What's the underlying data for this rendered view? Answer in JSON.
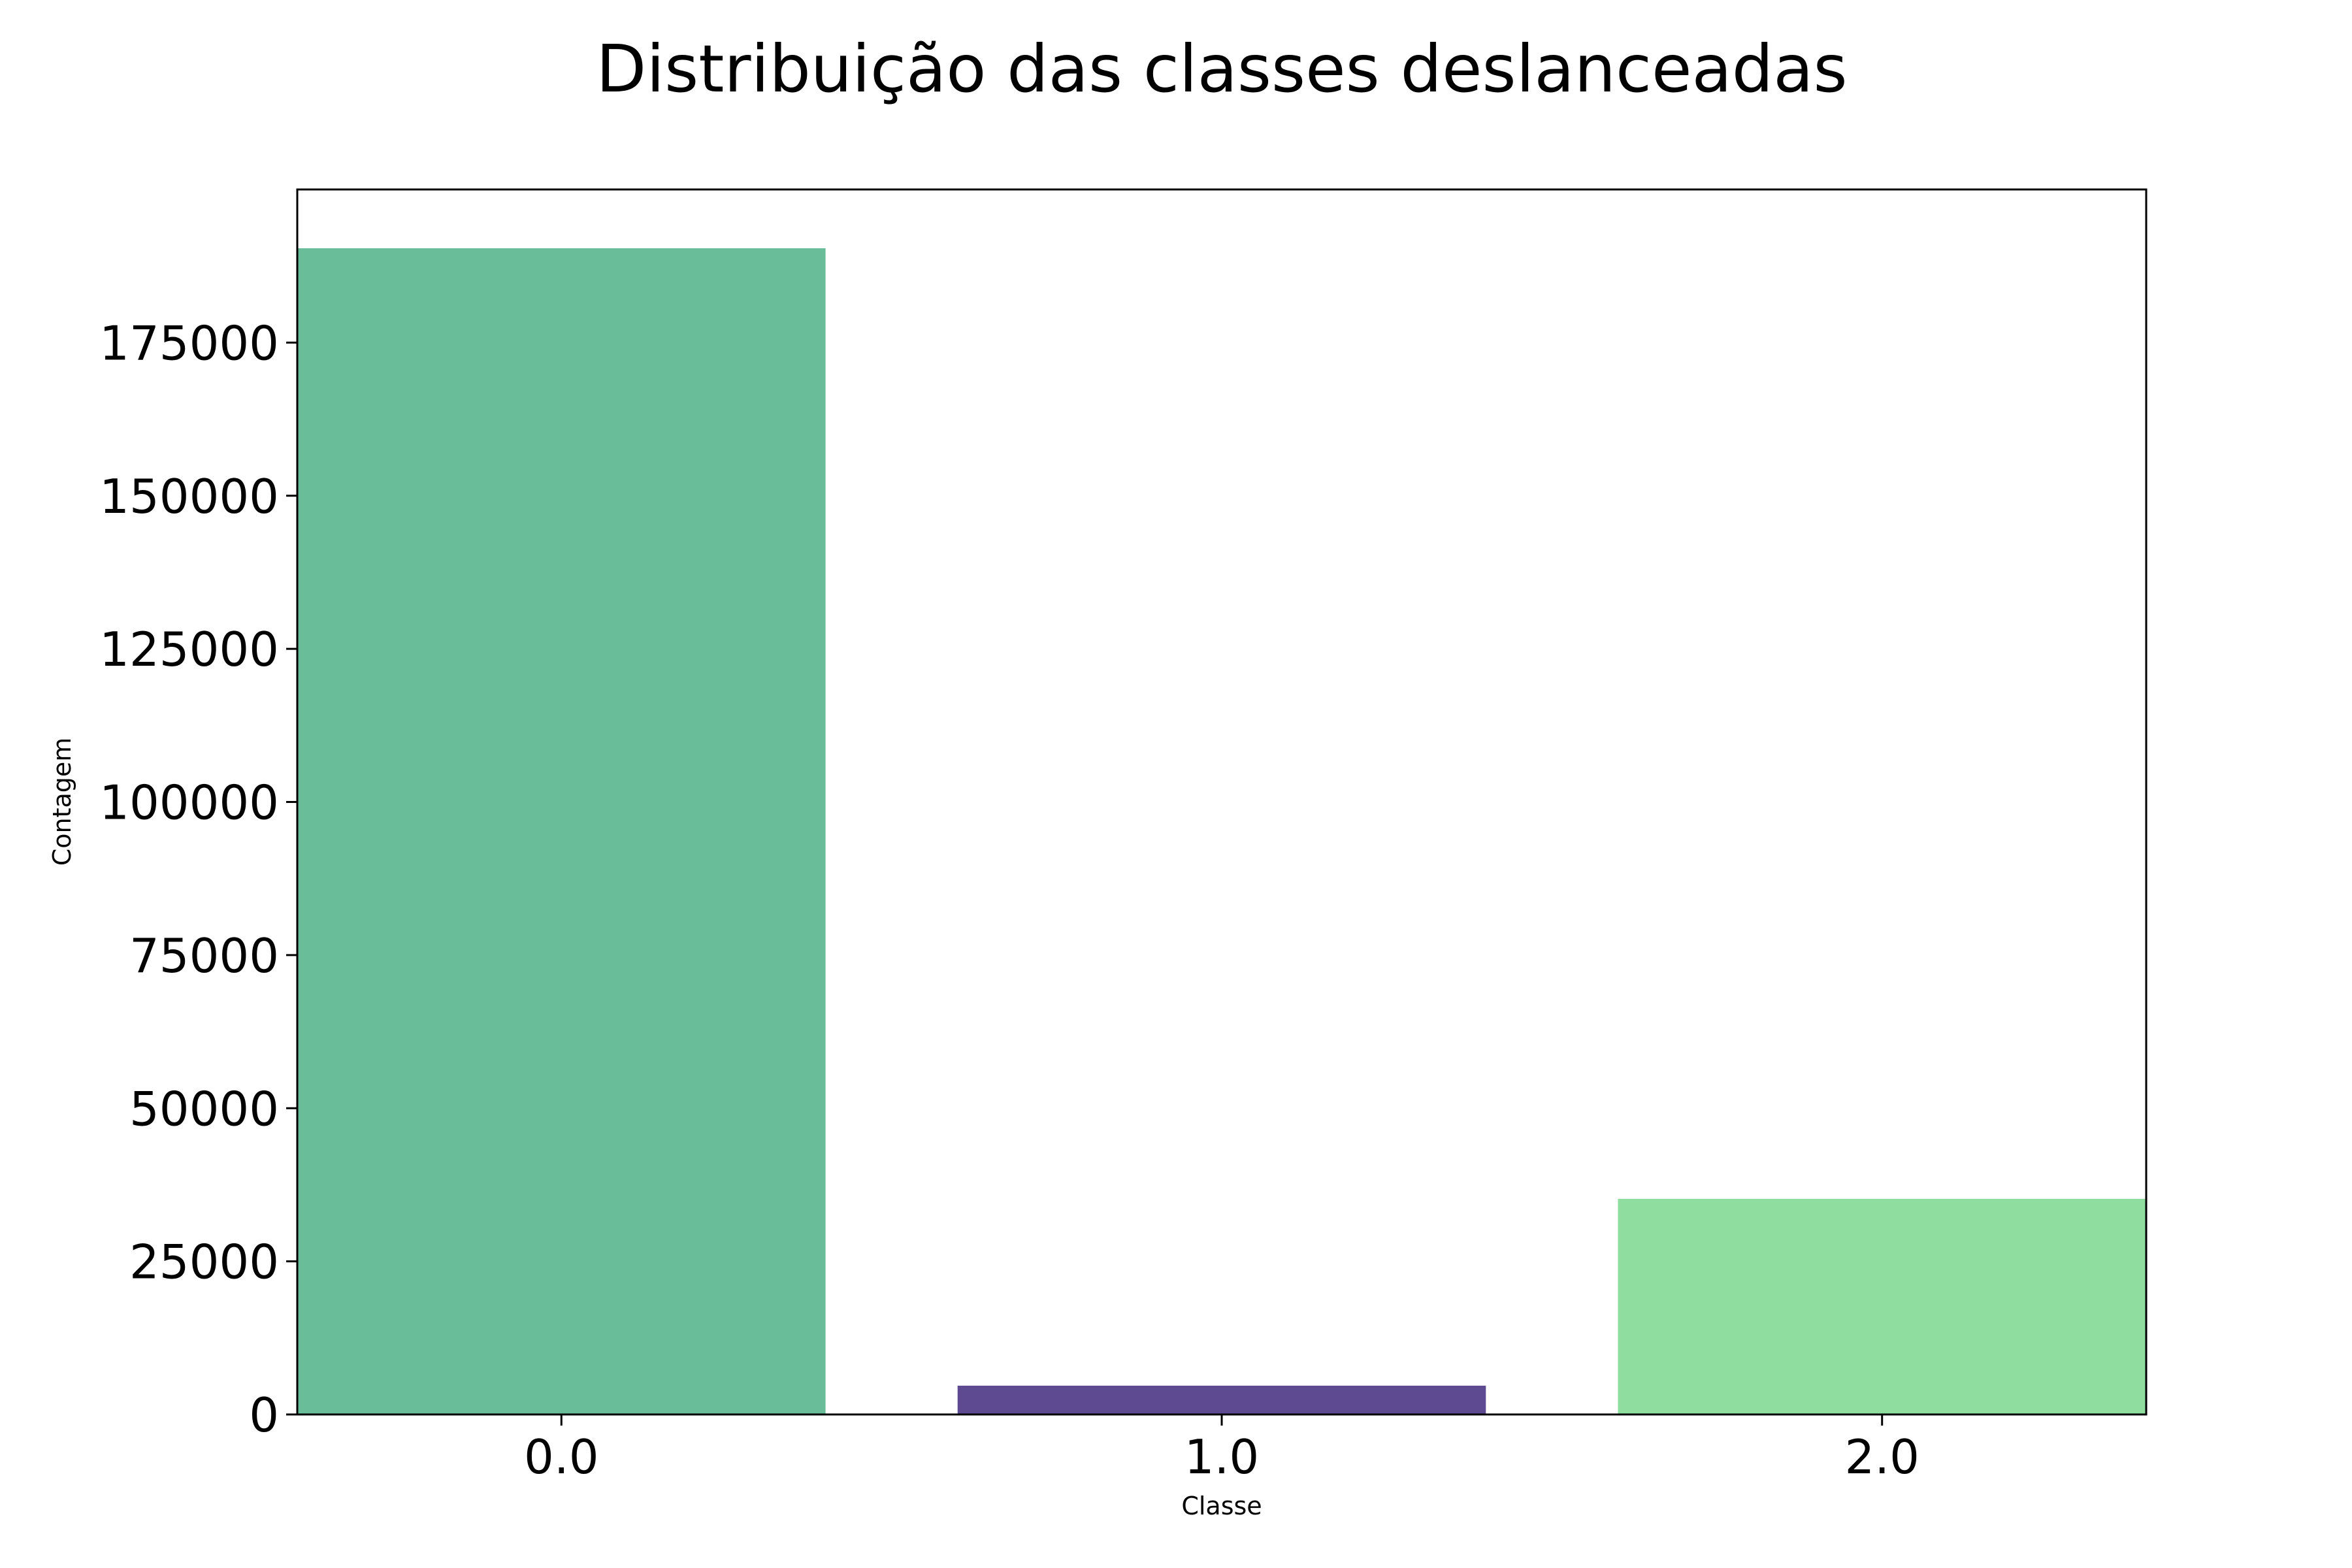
{
  "chart_data": {
    "type": "bar",
    "title": "Distribuição das classes deslanceadas",
    "xlabel": "Classe",
    "ylabel": "Contagem",
    "categories": [
      "0.0",
      "1.0",
      "2.0"
    ],
    "values": [
      190400,
      4700,
      35200
    ],
    "colors": [
      "#69bd98",
      "#5e4a91",
      "#90de9f"
    ],
    "ylim": [
      0,
      200000
    ],
    "yticks": [
      0,
      25000,
      50000,
      75000,
      100000,
      125000,
      150000,
      175000
    ],
    "ytick_labels": [
      "0",
      "25000",
      "50000",
      "75000",
      "100000",
      "125000",
      "150000",
      "175000"
    ],
    "grid": false,
    "legend": "none"
  }
}
